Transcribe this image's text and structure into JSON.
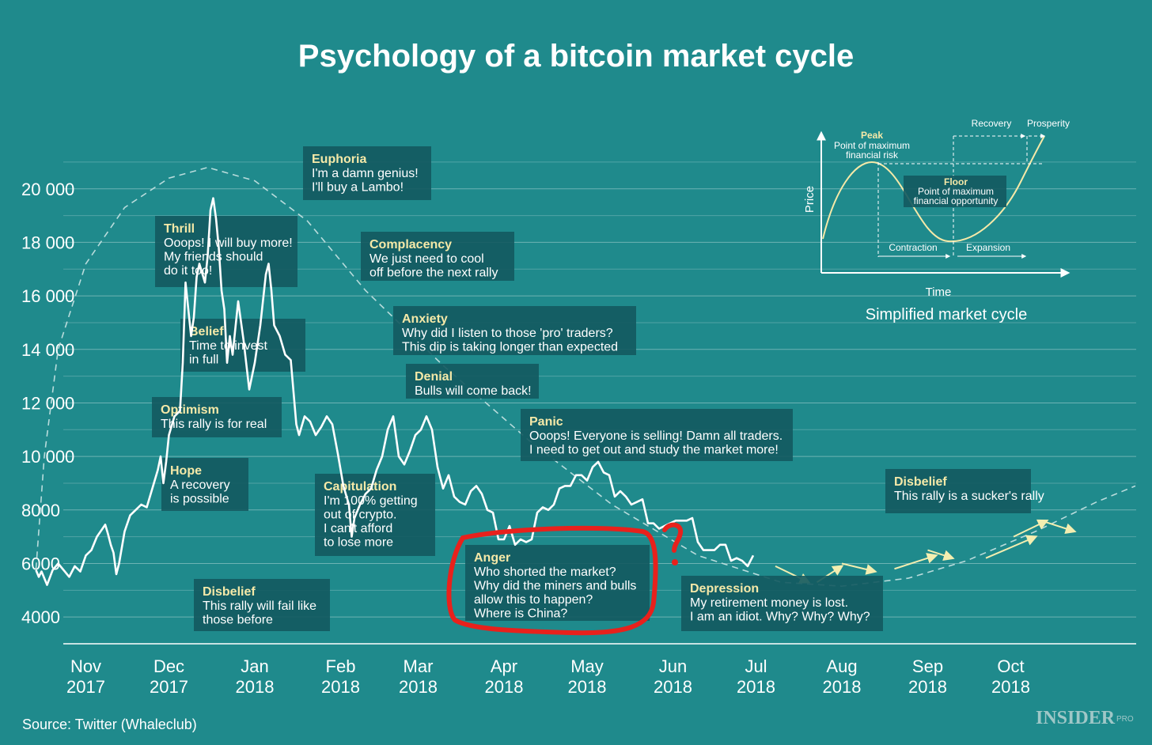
{
  "chart_data": {
    "type": "line",
    "title": "Psychology of a bitcoin market cycle",
    "source": "Source: Twitter (Whaleclub)",
    "brand": "INSIDER",
    "brand_suffix": "PRO",
    "ylim": [
      3000,
      21500
    ],
    "yticks": [
      {
        "value": 4000,
        "label": "4000"
      },
      {
        "value": 6000,
        "label": "6000"
      },
      {
        "value": 8000,
        "label": "8000"
      },
      {
        "value": 10000,
        "label": "10 000"
      },
      {
        "value": 12000,
        "label": "12 000"
      },
      {
        "value": 14000,
        "label": "14 000"
      },
      {
        "value": 16000,
        "label": "16 000"
      },
      {
        "value": 18000,
        "label": "18 000"
      },
      {
        "value": 20000,
        "label": "20 000"
      }
    ],
    "xlim": [
      "2017-10-01",
      "2018-11-21"
    ],
    "xticks": [
      {
        "date": "2017-11-01",
        "month": "Nov",
        "year": "2017"
      },
      {
        "date": "2017-12-01",
        "month": "Dec",
        "year": "2017"
      },
      {
        "date": "2018-01-01",
        "month": "Jan",
        "year": "2018"
      },
      {
        "date": "2018-02-01",
        "month": "Feb",
        "year": "2018"
      },
      {
        "date": "2018-03-01",
        "month": "Mar",
        "year": "2018"
      },
      {
        "date": "2018-04-01",
        "month": "Apr",
        "year": "2018"
      },
      {
        "date": "2018-05-01",
        "month": "May",
        "year": "2018"
      },
      {
        "date": "2018-06-01",
        "month": "Jun",
        "year": "2018"
      },
      {
        "date": "2018-07-01",
        "month": "Jul",
        "year": "2018"
      },
      {
        "date": "2018-08-01",
        "month": "Aug",
        "year": "2018"
      },
      {
        "date": "2018-09-01",
        "month": "Sep",
        "year": "2018"
      },
      {
        "date": "2018-10-01",
        "month": "Oct",
        "year": "2018"
      }
    ],
    "grid": "horizontal",
    "series": [
      {
        "points": [
          [
            "2017-10-14",
            5750
          ],
          [
            "2017-10-15",
            5500
          ],
          [
            "2017-10-16",
            5700
          ],
          [
            "2017-10-18",
            5200
          ],
          [
            "2017-10-20",
            5750
          ],
          [
            "2017-10-22",
            6000
          ],
          [
            "2017-10-24",
            5750
          ],
          [
            "2017-10-26",
            5500
          ],
          [
            "2017-10-28",
            5900
          ],
          [
            "2017-10-30",
            5700
          ],
          [
            "2017-11-01",
            6300
          ],
          [
            "2017-11-03",
            6500
          ],
          [
            "2017-11-05",
            7000
          ],
          [
            "2017-11-07",
            7300
          ],
          [
            "2017-11-08",
            7450
          ],
          [
            "2017-11-09",
            7100
          ],
          [
            "2017-11-10",
            6700
          ],
          [
            "2017-11-11",
            6400
          ],
          [
            "2017-11-12",
            5600
          ],
          [
            "2017-11-13",
            6000
          ],
          [
            "2017-11-15",
            7200
          ],
          [
            "2017-11-17",
            7800
          ],
          [
            "2017-11-19",
            8000
          ],
          [
            "2017-11-21",
            8200
          ],
          [
            "2017-11-23",
            8100
          ],
          [
            "2017-11-25",
            8800
          ],
          [
            "2017-11-27",
            9500
          ],
          [
            "2017-11-28",
            10000
          ],
          [
            "2017-11-29",
            9000
          ],
          [
            "2017-11-30",
            9800
          ],
          [
            "2017-12-01",
            10800
          ],
          [
            "2017-12-03",
            11500
          ],
          [
            "2017-12-05",
            11700
          ],
          [
            "2017-12-06",
            13500
          ],
          [
            "2017-12-07",
            16500
          ],
          [
            "2017-12-08",
            15500
          ],
          [
            "2017-12-09",
            14500
          ],
          [
            "2017-12-10",
            15200
          ],
          [
            "2017-12-11",
            16700
          ],
          [
            "2017-12-12",
            17200
          ],
          [
            "2017-12-14",
            16500
          ],
          [
            "2017-12-15",
            17500
          ],
          [
            "2017-12-16",
            19200
          ],
          [
            "2017-12-17",
            19650
          ],
          [
            "2017-12-18",
            18900
          ],
          [
            "2017-12-19",
            17800
          ],
          [
            "2017-12-20",
            16200
          ],
          [
            "2017-12-21",
            15500
          ],
          [
            "2017-12-22",
            13500
          ],
          [
            "2017-12-23",
            14500
          ],
          [
            "2017-12-24",
            13800
          ],
          [
            "2017-12-26",
            15800
          ],
          [
            "2017-12-28",
            14300
          ],
          [
            "2017-12-30",
            12500
          ],
          [
            "2018-01-01",
            13500
          ],
          [
            "2018-01-03",
            14900
          ],
          [
            "2018-01-05",
            16800
          ],
          [
            "2018-01-06",
            17200
          ],
          [
            "2018-01-07",
            16200
          ],
          [
            "2018-01-08",
            14900
          ],
          [
            "2018-01-10",
            14500
          ],
          [
            "2018-01-12",
            13800
          ],
          [
            "2018-01-14",
            13600
          ],
          [
            "2018-01-16",
            11200
          ],
          [
            "2018-01-17",
            10800
          ],
          [
            "2018-01-19",
            11500
          ],
          [
            "2018-01-21",
            11300
          ],
          [
            "2018-01-23",
            10800
          ],
          [
            "2018-01-25",
            11100
          ],
          [
            "2018-01-27",
            11500
          ],
          [
            "2018-01-29",
            11200
          ],
          [
            "2018-01-31",
            10100
          ],
          [
            "2018-02-02",
            8900
          ],
          [
            "2018-02-04",
            8200
          ],
          [
            "2018-02-05",
            7000
          ],
          [
            "2018-02-06",
            7700
          ],
          [
            "2018-02-08",
            8200
          ],
          [
            "2018-02-10",
            8600
          ],
          [
            "2018-02-12",
            8800
          ],
          [
            "2018-02-14",
            9500
          ],
          [
            "2018-02-16",
            10000
          ],
          [
            "2018-02-18",
            11000
          ],
          [
            "2018-02-20",
            11500
          ],
          [
            "2018-02-22",
            10000
          ],
          [
            "2018-02-24",
            9700
          ],
          [
            "2018-02-26",
            10200
          ],
          [
            "2018-02-28",
            10800
          ],
          [
            "2018-03-02",
            11000
          ],
          [
            "2018-03-04",
            11500
          ],
          [
            "2018-03-06",
            11000
          ],
          [
            "2018-03-08",
            9600
          ],
          [
            "2018-03-10",
            8800
          ],
          [
            "2018-03-12",
            9300
          ],
          [
            "2018-03-14",
            8500
          ],
          [
            "2018-03-16",
            8300
          ],
          [
            "2018-03-18",
            8200
          ],
          [
            "2018-03-20",
            8700
          ],
          [
            "2018-03-22",
            8900
          ],
          [
            "2018-03-24",
            8600
          ],
          [
            "2018-03-26",
            8000
          ],
          [
            "2018-03-28",
            7900
          ],
          [
            "2018-03-30",
            6900
          ],
          [
            "2018-04-01",
            6900
          ],
          [
            "2018-04-03",
            7400
          ],
          [
            "2018-04-05",
            6700
          ],
          [
            "2018-04-07",
            6900
          ],
          [
            "2018-04-09",
            6800
          ],
          [
            "2018-04-11",
            6900
          ],
          [
            "2018-04-13",
            7900
          ],
          [
            "2018-04-15",
            8100
          ],
          [
            "2018-04-17",
            8000
          ],
          [
            "2018-04-19",
            8200
          ],
          [
            "2018-04-21",
            8800
          ],
          [
            "2018-04-23",
            8900
          ],
          [
            "2018-04-25",
            8900
          ],
          [
            "2018-04-27",
            9300
          ],
          [
            "2018-04-29",
            9300
          ],
          [
            "2018-05-01",
            9100
          ],
          [
            "2018-05-03",
            9600
          ],
          [
            "2018-05-05",
            9800
          ],
          [
            "2018-05-07",
            9400
          ],
          [
            "2018-05-09",
            9300
          ],
          [
            "2018-05-11",
            8500
          ],
          [
            "2018-05-13",
            8700
          ],
          [
            "2018-05-15",
            8500
          ],
          [
            "2018-05-17",
            8200
          ],
          [
            "2018-05-19",
            8300
          ],
          [
            "2018-05-21",
            8400
          ],
          [
            "2018-05-23",
            7500
          ],
          [
            "2018-05-25",
            7500
          ],
          [
            "2018-05-27",
            7300
          ],
          [
            "2018-05-29",
            7400
          ],
          [
            "2018-05-31",
            7500
          ],
          [
            "2018-06-02",
            7600
          ],
          [
            "2018-06-04",
            7600
          ],
          [
            "2018-06-06",
            7600
          ],
          [
            "2018-06-08",
            7700
          ],
          [
            "2018-06-10",
            6800
          ],
          [
            "2018-06-12",
            6500
          ],
          [
            "2018-06-14",
            6500
          ],
          [
            "2018-06-16",
            6500
          ],
          [
            "2018-06-18",
            6700
          ],
          [
            "2018-06-20",
            6700
          ],
          [
            "2018-06-22",
            6100
          ],
          [
            "2018-06-24",
            6200
          ],
          [
            "2018-06-26",
            6100
          ],
          [
            "2018-06-28",
            5900
          ],
          [
            "2018-06-30",
            6300
          ]
        ]
      }
    ],
    "trend": {
      "points": [
        [
          "2017-10-14",
          5800
        ],
        [
          "2017-10-17",
          10000
        ],
        [
          "2017-10-22",
          14000
        ],
        [
          "2017-11-01",
          17200
        ],
        [
          "2017-11-15",
          19300
        ],
        [
          "2017-12-01",
          20400
        ],
        [
          "2017-12-15",
          20800
        ],
        [
          "2018-01-01",
          20300
        ],
        [
          "2018-01-20",
          18800
        ],
        [
          "2018-02-10",
          16200
        ],
        [
          "2018-03-10",
          13400
        ],
        [
          "2018-04-10",
          10600
        ],
        [
          "2018-05-10",
          8200
        ],
        [
          "2018-06-10",
          6300
        ],
        [
          "2018-07-10",
          5300
        ],
        [
          "2018-08-01",
          5150
        ],
        [
          "2018-08-25",
          5450
        ],
        [
          "2018-09-15",
          6100
        ],
        [
          "2018-10-10",
          7200
        ],
        [
          "2018-11-01",
          8300
        ],
        [
          "2018-11-15",
          8900
        ]
      ]
    },
    "arrows": [
      {
        "from": [
          "2018-07-08",
          5900
        ],
        "to": [
          "2018-07-20",
          5300
        ]
      },
      {
        "from": [
          "2018-07-23",
          5300
        ],
        "to": [
          "2018-08-01",
          5900
        ]
      },
      {
        "from": [
          "2018-08-01",
          6000
        ],
        "to": [
          "2018-08-13",
          5700
        ]
      },
      {
        "from": [
          "2018-08-20",
          5800
        ],
        "to": [
          "2018-09-04",
          6300
        ]
      },
      {
        "from": [
          "2018-09-01",
          6500
        ],
        "to": [
          "2018-09-10",
          6200
        ]
      },
      {
        "from": [
          "2018-09-22",
          6200
        ],
        "to": [
          "2018-10-10",
          7000
        ]
      },
      {
        "from": [
          "2018-10-02",
          7000
        ],
        "to": [
          "2018-10-14",
          7600
        ]
      },
      {
        "from": [
          "2018-10-12",
          7600
        ],
        "to": [
          "2018-10-24",
          7200
        ]
      }
    ],
    "annotations": [
      {
        "title": "Euphoria",
        "lines": [
          "I'm a damn genius!",
          "I'll buy a Lambo!"
        ]
      },
      {
        "title": "Thrill",
        "lines": [
          "Ooops! I will buy more!",
          "My friends should",
          "do it too!"
        ]
      },
      {
        "title": "Complacency",
        "lines": [
          "We just need to cool",
          "off before the next rally"
        ]
      },
      {
        "title": "Belief",
        "lines": [
          "Time to invest",
          "in full"
        ]
      },
      {
        "title": "Anxiety",
        "lines": [
          "Why did I listen to those 'pro' traders?",
          "This dip is taking longer than expected"
        ]
      },
      {
        "title": "Denial",
        "lines": [
          "Bulls will come back!"
        ]
      },
      {
        "title": "Optimism",
        "lines": [
          "This rally is for real"
        ]
      },
      {
        "title": "Panic",
        "lines": [
          "Ooops! Everyone is selling! Damn all traders.",
          "I need to get out and study the market more!"
        ]
      },
      {
        "title": "Hope",
        "lines": [
          "A recovery",
          "is possible"
        ]
      },
      {
        "title": "Capitulation",
        "lines": [
          "I'm 100% getting",
          "out of crypto.",
          "I can't afford",
          "to lose more"
        ]
      },
      {
        "title": "Disbelief",
        "lines": [
          "This rally is a sucker's rally"
        ]
      },
      {
        "title": "Anger",
        "lines": [
          "Who shorted the market?",
          "Why did the miners and bulls",
          "allow this to happen?",
          "Where is China?"
        ]
      },
      {
        "title": "Depression",
        "lines": [
          "My retirement money is lost.",
          "I am an idiot. Why? Why? Why?"
        ]
      },
      {
        "title": "Disbelief",
        "lines": [
          "This rally will fail like",
          "those before"
        ]
      }
    ],
    "handwritten_mark": "?",
    "highlight_color": "#e8211c",
    "colors": {
      "background": "#1f8a8c",
      "line": "#ffffff",
      "box": "#13595f",
      "heading": "#f5e9a8",
      "arrow": "#f3eeb0"
    },
    "inset": {
      "title": "Simplified market cycle",
      "xlabel": "Time",
      "ylabel": "Price",
      "peak_title": "Peak",
      "peak_lines": [
        "Point of maximum",
        "financial risk"
      ],
      "floor_title": "Floor",
      "floor_lines": [
        "Point of maximum",
        "financial opportunity"
      ],
      "phases": [
        "Contraction",
        "Expansion",
        "Recovery",
        "Prosperity"
      ]
    }
  }
}
